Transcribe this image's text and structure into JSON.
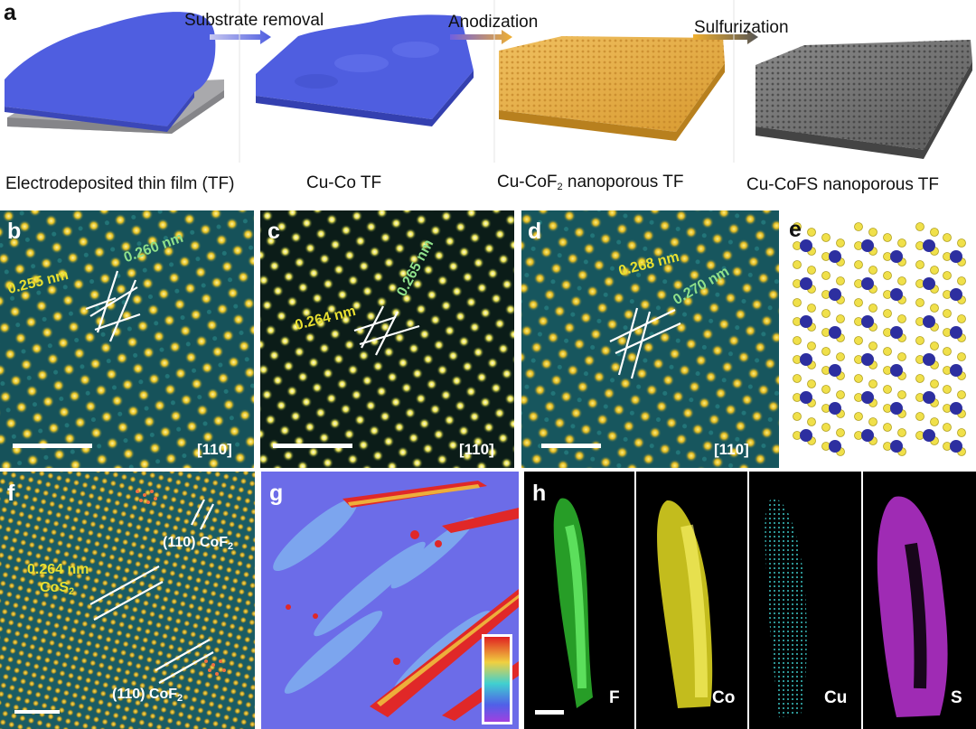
{
  "panel_a": {
    "label": "a",
    "steps": [
      {
        "label": "Substrate removal"
      },
      {
        "label": "Anodization"
      },
      {
        "label": "Sulfurization"
      }
    ],
    "captions": [
      {
        "text": "Electrodeposited thin film (TF)"
      },
      {
        "text": "Cu-Co TF"
      },
      {
        "pre": "Cu-CoF",
        "sub": "2",
        "post": " nanoporous TF"
      },
      {
        "text": "Cu-CoFS nanoporous TF"
      }
    ],
    "colors": {
      "film_blue": "#4f5ee0",
      "substrate_gray": "#a9a9ac",
      "cof2_gold": "#e0a640",
      "cofs_gray": "#6d6d6d"
    }
  },
  "panel_b": {
    "label": "b",
    "d1": "0.255 nm",
    "d2": "0.260 nm",
    "zone_axis": "[110]"
  },
  "panel_c": {
    "label": "c",
    "d1": "0.264 nm",
    "d2": "0.265 nm",
    "zone_axis": "[110]"
  },
  "panel_d": {
    "label": "d",
    "d1": "0.268 nm",
    "d2": "0.270 nm",
    "zone_axis": "[110]"
  },
  "panel_e": {
    "label": "e",
    "atom_colors": {
      "co": "#2d2fa0",
      "s": "#f0e04a"
    }
  },
  "panel_f": {
    "label": "f",
    "d_spacing": "0.264 nm",
    "phase": {
      "pre": "CoS",
      "sub": "2"
    },
    "plane_labels": [
      {
        "pre": "(110) CoF",
        "sub": "2"
      },
      {
        "pre": "(110) CoF",
        "sub": "2"
      }
    ]
  },
  "panel_g": {
    "label": "g"
  },
  "panel_h": {
    "label": "h",
    "elements": [
      {
        "symbol": "F",
        "color": "#22d022"
      },
      {
        "symbol": "Co",
        "color": "#e8e020"
      },
      {
        "symbol": "Cu",
        "color": "#3ad0d0"
      },
      {
        "symbol": "S",
        "color": "#c040d8"
      }
    ]
  }
}
